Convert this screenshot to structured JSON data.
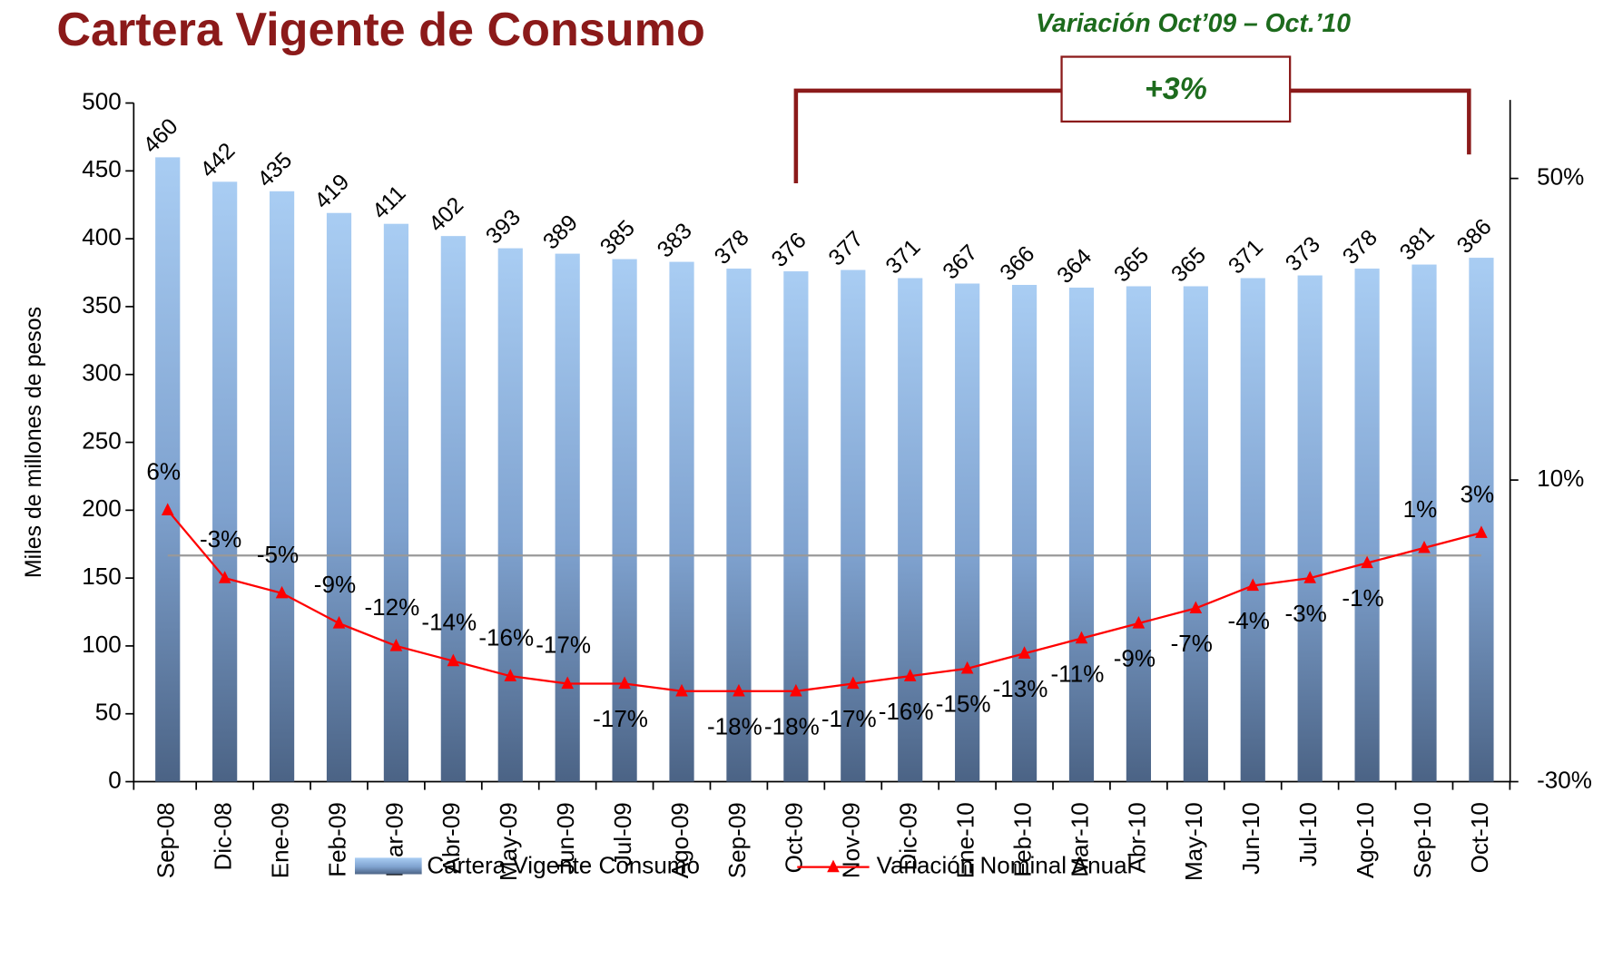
{
  "chart_data": {
    "type": "bar_line",
    "title": "Cartera Vigente de Consumo",
    "annotation_period": "Variación Oct’09 – Oct.’10",
    "annotation_change": "+3%",
    "y_label": "Miles de millones de pesos",
    "categories": [
      "Sep-08",
      "Dic-08",
      "Ene-09",
      "Feb-09",
      "Mar-09",
      "Abr-09",
      "May-09",
      "Jun-09",
      "Jul-09",
      "Ago-09",
      "Sep-09",
      "Oct-09",
      "Nov-09",
      "Dic-09",
      "Ene-10",
      "Feb-10",
      "Mar-10",
      "Abr-10",
      "May-10",
      "Jun-10",
      "Jul-10",
      "Ago-10",
      "Sep-10",
      "Oct-10"
    ],
    "series": [
      {
        "name": "Cartera Vigente Consumo",
        "color": "#7fa8d8",
        "values": [
          460,
          442,
          435,
          419,
          411,
          402,
          393,
          389,
          385,
          383,
          378,
          376,
          377,
          371,
          367,
          366,
          364,
          365,
          365,
          371,
          373,
          378,
          381,
          386
        ]
      },
      {
        "name": "Variación Nominal Anual",
        "color": "#ff0000",
        "axis": "y2",
        "values": [
          6,
          -3,
          -5,
          -9,
          -12,
          -14,
          -16,
          -17,
          -17,
          -18,
          -18,
          -18,
          -17,
          -16,
          -15,
          -13,
          -11,
          -9,
          -7,
          -4,
          -3,
          -1,
          1,
          3
        ],
        "value_labels": [
          "6%",
          "-3%",
          "-5%",
          "-9%",
          "-12%",
          "-14%",
          "-16%",
          "-17%",
          "-17%",
          null,
          "-18%",
          "-18%",
          "-17%",
          "-16%",
          "-15%",
          "-13%",
          "-11%",
          "-9%",
          "-7%",
          "-4%",
          "-3%",
          "-1%",
          "1%",
          "3%"
        ]
      }
    ],
    "ylim": [
      0,
      500
    ],
    "yticks": [
      0,
      50,
      100,
      150,
      200,
      250,
      300,
      350,
      400,
      450,
      500
    ],
    "y2lim": [
      -30,
      60
    ],
    "y2ticks": [
      {
        "value": -30,
        "label": "-30%"
      },
      {
        "value": 10,
        "label": "10%"
      },
      {
        "value": 50,
        "label": "50%"
      }
    ],
    "legend": "bottom"
  }
}
